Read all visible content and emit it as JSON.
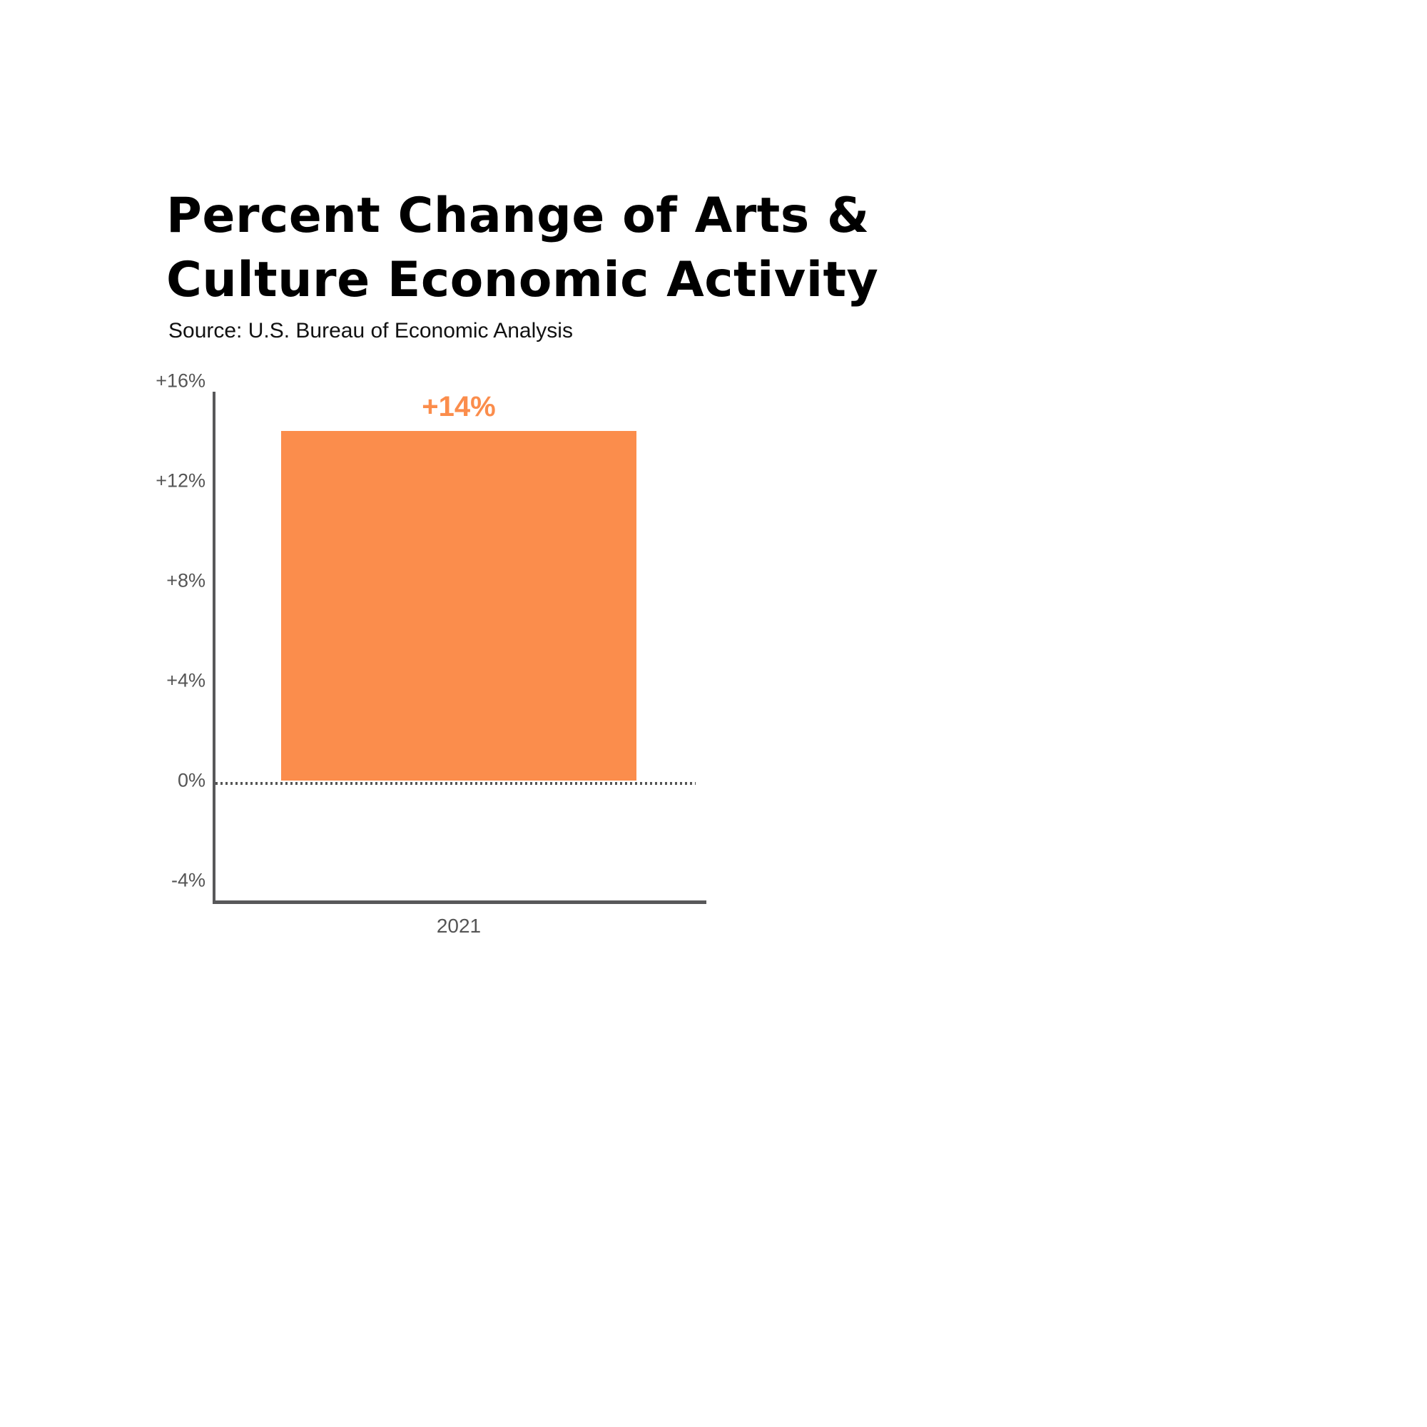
{
  "header": {
    "title_lines": [
      "Percent Change of Arts &",
      "Culture Economic Activity"
    ],
    "source": "Source: U.S. Bureau of Economic Analysis"
  },
  "chart_data": {
    "type": "bar",
    "title": "Percent Change of Arts & Culture Economic Activity",
    "subtitle": "Source: U.S. Bureau of Economic Analysis",
    "categories": [
      "2021"
    ],
    "values": [
      14
    ],
    "bar_labels": [
      "+14%"
    ],
    "xlabel": "",
    "ylabel": "",
    "ylim": [
      -4,
      16
    ],
    "y_ticks": [
      {
        "value": 16,
        "label": "+16%"
      },
      {
        "value": 12,
        "label": "+12%"
      },
      {
        "value": 8,
        "label": "+8%"
      },
      {
        "value": 4,
        "label": "+4%"
      },
      {
        "value": 0,
        "label": "0%"
      },
      {
        "value": -4,
        "label": "-4%"
      }
    ],
    "zero_line": "dotted",
    "grid": false,
    "legend": false,
    "colors": {
      "bar": "#fb8d4c",
      "bar_label": "#fb8d4c",
      "axis": "#58585a",
      "tick_text": "#555555",
      "zero_line": "#555555",
      "title": "#000000",
      "source": "#111111",
      "background": "#ffffff"
    }
  }
}
